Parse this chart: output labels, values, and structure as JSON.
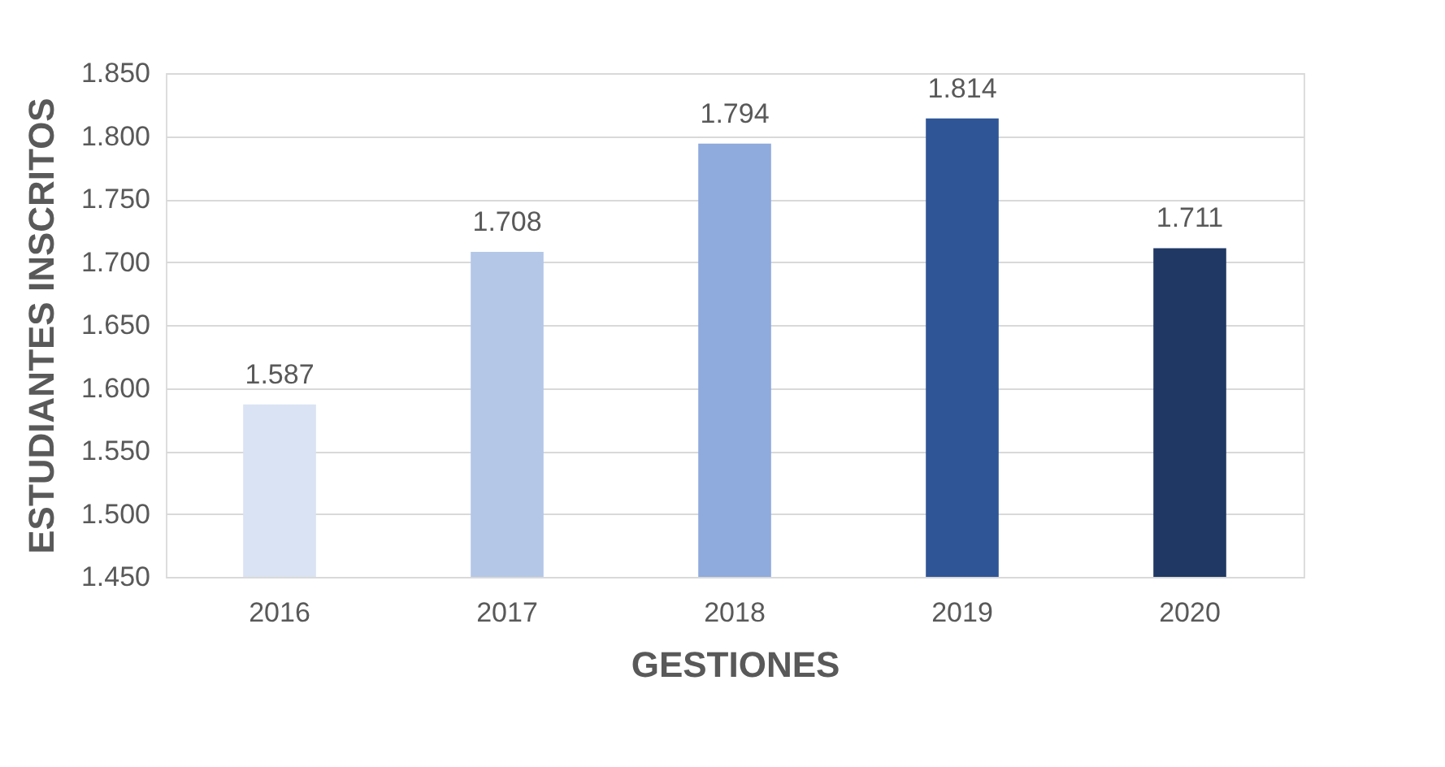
{
  "chart_data": {
    "type": "bar",
    "xlabel": "GESTIONES",
    "ylabel": "ESTUDIANTES INSCRITOS",
    "categories": [
      "2016",
      "2017",
      "2018",
      "2019",
      "2020"
    ],
    "values": [
      1587,
      1708,
      1794,
      1814,
      1711
    ],
    "colors": [
      "#dae3f3",
      "#b4c7e7",
      "#8faadc",
      "#2f5597",
      "#1f3864"
    ],
    "value_labels": [
      "1.587",
      "1.708",
      "1.794",
      "1.814",
      "1.711"
    ],
    "ylim": [
      1450,
      1850
    ],
    "yticks": [
      {
        "value": 1450,
        "label": "1.450"
      },
      {
        "value": 1500,
        "label": "1.500"
      },
      {
        "value": 1550,
        "label": "1.550"
      },
      {
        "value": 1600,
        "label": "1.600"
      },
      {
        "value": 1650,
        "label": "1.650"
      },
      {
        "value": 1700,
        "label": "1.700"
      },
      {
        "value": 1750,
        "label": "1.750"
      },
      {
        "value": 1800,
        "label": "1.800"
      },
      {
        "value": 1850,
        "label": "1.850"
      }
    ],
    "grid": "y",
    "legend": false
  }
}
